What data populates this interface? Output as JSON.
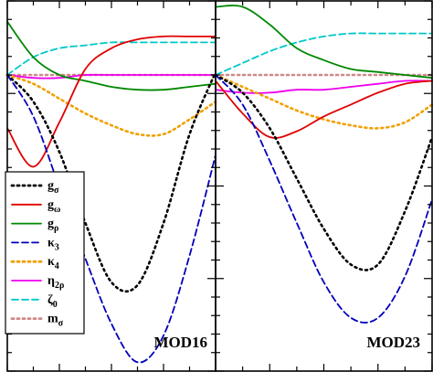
{
  "chart_data": {
    "type": "line",
    "x": [
      0,
      0.125,
      0.25,
      0.375,
      0.5,
      0.625,
      0.75,
      0.875,
      1
    ],
    "xlim": [
      0,
      1
    ],
    "ylim": [
      -1,
      0.25
    ],
    "grid": false,
    "legend_position": "left",
    "panels": [
      {
        "label": "MOD16",
        "series": [
          {
            "key": "g_sigma",
            "values": [
              0,
              -0.09,
              -0.26,
              -0.5,
              -0.7,
              -0.71,
              -0.5,
              -0.2,
              0.01
            ]
          },
          {
            "key": "g_omega",
            "values": [
              -0.18,
              -0.31,
              -0.16,
              0.02,
              0.09,
              0.12,
              0.13,
              0.13,
              0.13
            ]
          },
          {
            "key": "g_rho",
            "values": [
              0.18,
              0.06,
              0.0,
              -0.02,
              -0.04,
              -0.05,
              -0.05,
              -0.04,
              -0.03
            ]
          },
          {
            "key": "kappa_3",
            "values": [
              0,
              -0.14,
              -0.38,
              -0.62,
              -0.84,
              -0.97,
              -0.88,
              -0.61,
              -0.27
            ]
          },
          {
            "key": "kappa_4",
            "values": [
              0,
              -0.03,
              -0.08,
              -0.13,
              -0.17,
              -0.2,
              -0.2,
              -0.15,
              -0.09
            ]
          },
          {
            "key": "eta_2rho",
            "values": [
              0,
              -0.01,
              -0.01,
              0,
              0,
              0,
              0,
              0,
              0
            ]
          },
          {
            "key": "zeta_0",
            "values": [
              0,
              0.06,
              0.09,
              0.1,
              0.11,
              0.11,
              0.11,
              0.11,
              0.11
            ]
          },
          {
            "key": "m_sigma",
            "values": [
              0,
              0,
              0,
              0,
              0,
              0,
              0,
              0,
              0
            ]
          }
        ]
      },
      {
        "label": "MOD23",
        "series": [
          {
            "key": "g_sigma",
            "values": [
              0,
              -0.06,
              -0.18,
              -0.35,
              -0.52,
              -0.64,
              -0.64,
              -0.46,
              -0.21
            ]
          },
          {
            "key": "g_omega",
            "values": [
              -0.02,
              -0.13,
              -0.21,
              -0.19,
              -0.14,
              -0.1,
              -0.06,
              -0.03,
              -0.02
            ]
          },
          {
            "key": "g_rho",
            "values": [
              0.23,
              0.23,
              0.17,
              0.09,
              0.05,
              0.02,
              0.01,
              0,
              -0.01
            ]
          },
          {
            "key": "kappa_3",
            "values": [
              0,
              -0.1,
              -0.29,
              -0.5,
              -0.7,
              -0.82,
              -0.82,
              -0.68,
              -0.42
            ]
          },
          {
            "key": "kappa_4",
            "values": [
              0,
              -0.04,
              -0.08,
              -0.12,
              -0.15,
              -0.17,
              -0.18,
              -0.16,
              -0.1
            ]
          },
          {
            "key": "eta_2rho",
            "values": [
              -0.05,
              -0.06,
              -0.06,
              -0.05,
              -0.05,
              -0.04,
              -0.03,
              -0.02,
              -0.02
            ]
          },
          {
            "key": "zeta_0",
            "values": [
              0,
              0.04,
              0.08,
              0.11,
              0.13,
              0.14,
              0.14,
              0.14,
              0.14
            ]
          },
          {
            "key": "m_sigma",
            "values": [
              0,
              0,
              0,
              0,
              0,
              0,
              0,
              0,
              0
            ]
          }
        ]
      }
    ],
    "legend": [
      {
        "key": "g_sigma",
        "main": "g",
        "sub": "σ",
        "color": "#000000",
        "dash": "dot"
      },
      {
        "key": "g_omega",
        "main": "g",
        "sub": "ω",
        "color": "#e00000",
        "dash": "solid"
      },
      {
        "key": "g_rho",
        "main": "g",
        "sub": "ρ",
        "color": "#008800",
        "dash": "solid"
      },
      {
        "key": "kappa_3",
        "main": "κ",
        "sub": "3",
        "color": "#0000bb",
        "dash": "dash"
      },
      {
        "key": "kappa_4",
        "main": "κ",
        "sub": "4",
        "color": "#f0a000",
        "dash": "dot"
      },
      {
        "key": "eta_2rho",
        "main": "η",
        "sub": "2ρ",
        "color": "#ee00ee",
        "dash": "solid"
      },
      {
        "key": "zeta_0",
        "main": "ζ",
        "sub": "0",
        "color": "#00c8c8",
        "dash": "dash"
      },
      {
        "key": "m_sigma",
        "main": "m",
        "sub": "σ",
        "color": "#d08888",
        "dash": "dot"
      }
    ]
  }
}
